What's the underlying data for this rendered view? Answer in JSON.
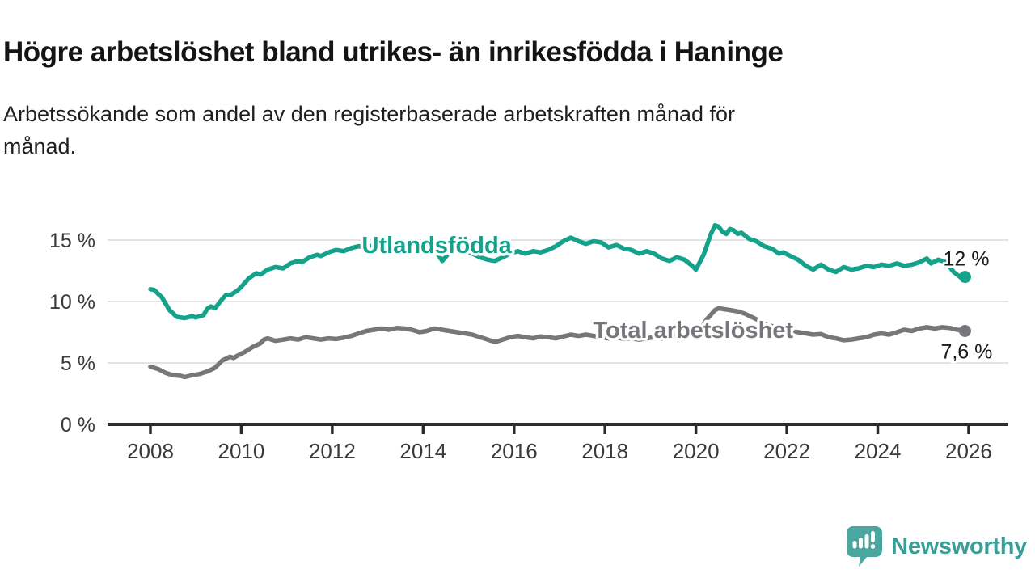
{
  "header": {
    "title": "Högre arbetslöshet bland utrikes- än inrikesfödda i Haninge",
    "subtitle_lines": [
      "Arbetssökande som andel av den registerbaserade arbetskraften månad för",
      "månad."
    ]
  },
  "branding": {
    "wordmark": "Newsworthy",
    "logo_color": "#4aa69f",
    "wordmark_color": "#3b9e96"
  },
  "chart_data": {
    "type": "line",
    "title": "Högre arbetslöshet bland utrikes- än inrikesfödda i Haninge",
    "subtitle": "Arbetssökande som andel av den registerbaserade arbetskraften månad för månad.",
    "xlabel": "",
    "ylabel": "",
    "xlim": [
      2007.05,
      2026.9
    ],
    "ylim": [
      0,
      17.5
    ],
    "grid": "horizontal",
    "grid_color": "#e3e3e3",
    "axis_color": "#2b2b2b",
    "tick_label_color": "#3a3a3a",
    "y_ticks": [
      {
        "value": 0,
        "label": "0 %"
      },
      {
        "value": 5,
        "label": "5 %"
      },
      {
        "value": 10,
        "label": "10 %"
      },
      {
        "value": 15,
        "label": "15 %"
      }
    ],
    "x_ticks": [
      {
        "value": 2008,
        "label": "2008"
      },
      {
        "value": 2010,
        "label": "2010"
      },
      {
        "value": 2012,
        "label": "2012"
      },
      {
        "value": 2014,
        "label": "2014"
      },
      {
        "value": 2016,
        "label": "2016"
      },
      {
        "value": 2018,
        "label": "2018"
      },
      {
        "value": 2020,
        "label": "2020"
      },
      {
        "value": 2022,
        "label": "2022"
      },
      {
        "value": 2024,
        "label": "2024"
      },
      {
        "value": 2026,
        "label": "2026"
      }
    ],
    "series": [
      {
        "name": "Utlandsfödda",
        "color": "#14a28b",
        "end_label": "12 %",
        "end_value": 12.0,
        "label_anchor": {
          "x": 2014.3,
          "y": 14.6
        },
        "points": [
          [
            2008.0,
            11.0
          ],
          [
            2008.08,
            10.95
          ],
          [
            2008.25,
            10.35
          ],
          [
            2008.42,
            9.3
          ],
          [
            2008.58,
            8.75
          ],
          [
            2008.75,
            8.65
          ],
          [
            2008.92,
            8.8
          ],
          [
            2009.0,
            8.7
          ],
          [
            2009.17,
            8.9
          ],
          [
            2009.25,
            9.4
          ],
          [
            2009.33,
            9.6
          ],
          [
            2009.42,
            9.45
          ],
          [
            2009.58,
            10.2
          ],
          [
            2009.67,
            10.55
          ],
          [
            2009.75,
            10.5
          ],
          [
            2009.92,
            10.9
          ],
          [
            2010.0,
            11.2
          ],
          [
            2010.17,
            11.9
          ],
          [
            2010.33,
            12.3
          ],
          [
            2010.42,
            12.2
          ],
          [
            2010.58,
            12.6
          ],
          [
            2010.75,
            12.8
          ],
          [
            2010.92,
            12.7
          ],
          [
            2011.08,
            13.1
          ],
          [
            2011.25,
            13.3
          ],
          [
            2011.33,
            13.2
          ],
          [
            2011.5,
            13.6
          ],
          [
            2011.67,
            13.8
          ],
          [
            2011.75,
            13.7
          ],
          [
            2011.92,
            14.0
          ],
          [
            2012.08,
            14.2
          ],
          [
            2012.25,
            14.1
          ],
          [
            2012.42,
            14.35
          ],
          [
            2012.58,
            14.5
          ],
          [
            2012.75,
            14.4
          ],
          [
            2012.92,
            14.6
          ],
          [
            2013.08,
            14.8
          ],
          [
            2013.25,
            14.7
          ],
          [
            2013.42,
            14.9
          ],
          [
            2013.58,
            14.8
          ],
          [
            2013.75,
            14.85
          ],
          [
            2013.92,
            14.7
          ],
          [
            2014.08,
            14.6
          ],
          [
            2014.25,
            14.3
          ],
          [
            2014.42,
            13.3
          ],
          [
            2014.58,
            14.0
          ],
          [
            2014.75,
            14.2
          ],
          [
            2014.92,
            14.0
          ],
          [
            2015.08,
            13.9
          ],
          [
            2015.25,
            13.6
          ],
          [
            2015.42,
            13.4
          ],
          [
            2015.58,
            13.3
          ],
          [
            2015.75,
            13.6
          ],
          [
            2015.92,
            13.9
          ],
          [
            2016.08,
            14.1
          ],
          [
            2016.25,
            13.9
          ],
          [
            2016.42,
            14.1
          ],
          [
            2016.58,
            14.0
          ],
          [
            2016.75,
            14.2
          ],
          [
            2016.92,
            14.5
          ],
          [
            2017.08,
            14.9
          ],
          [
            2017.25,
            15.2
          ],
          [
            2017.42,
            14.9
          ],
          [
            2017.58,
            14.7
          ],
          [
            2017.75,
            14.9
          ],
          [
            2017.92,
            14.8
          ],
          [
            2018.08,
            14.4
          ],
          [
            2018.25,
            14.6
          ],
          [
            2018.42,
            14.3
          ],
          [
            2018.58,
            14.2
          ],
          [
            2018.75,
            13.9
          ],
          [
            2018.92,
            14.1
          ],
          [
            2019.08,
            13.9
          ],
          [
            2019.25,
            13.5
          ],
          [
            2019.42,
            13.3
          ],
          [
            2019.58,
            13.6
          ],
          [
            2019.75,
            13.4
          ],
          [
            2019.92,
            12.9
          ],
          [
            2020.0,
            12.6
          ],
          [
            2020.17,
            13.8
          ],
          [
            2020.33,
            15.5
          ],
          [
            2020.42,
            16.2
          ],
          [
            2020.5,
            16.1
          ],
          [
            2020.58,
            15.7
          ],
          [
            2020.67,
            15.5
          ],
          [
            2020.75,
            15.9
          ],
          [
            2020.83,
            15.8
          ],
          [
            2020.92,
            15.5
          ],
          [
            2021.0,
            15.6
          ],
          [
            2021.17,
            15.1
          ],
          [
            2021.33,
            14.9
          ],
          [
            2021.5,
            14.5
          ],
          [
            2021.67,
            14.3
          ],
          [
            2021.83,
            13.9
          ],
          [
            2021.92,
            14.0
          ],
          [
            2022.08,
            13.7
          ],
          [
            2022.25,
            13.4
          ],
          [
            2022.42,
            12.9
          ],
          [
            2022.58,
            12.6
          ],
          [
            2022.75,
            13.0
          ],
          [
            2022.92,
            12.6
          ],
          [
            2023.08,
            12.4
          ],
          [
            2023.25,
            12.8
          ],
          [
            2023.42,
            12.6
          ],
          [
            2023.58,
            12.7
          ],
          [
            2023.75,
            12.9
          ],
          [
            2023.92,
            12.8
          ],
          [
            2024.08,
            13.0
          ],
          [
            2024.25,
            12.9
          ],
          [
            2024.42,
            13.1
          ],
          [
            2024.58,
            12.9
          ],
          [
            2024.75,
            13.0
          ],
          [
            2024.92,
            13.2
          ],
          [
            2025.08,
            13.5
          ],
          [
            2025.17,
            13.1
          ],
          [
            2025.33,
            13.4
          ],
          [
            2025.5,
            13.2
          ],
          [
            2025.67,
            12.4
          ],
          [
            2025.83,
            11.95
          ],
          [
            2025.92,
            12.0
          ]
        ]
      },
      {
        "name": "Total arbetslöshet",
        "color": "#77777b",
        "end_label": "7,6 %",
        "end_value": 7.6,
        "label_anchor": {
          "x": 2019.94,
          "y": 7.7
        },
        "points": [
          [
            2008.0,
            4.7
          ],
          [
            2008.17,
            4.5
          ],
          [
            2008.33,
            4.2
          ],
          [
            2008.5,
            4.0
          ],
          [
            2008.67,
            3.95
          ],
          [
            2008.75,
            3.85
          ],
          [
            2008.92,
            4.0
          ],
          [
            2009.08,
            4.1
          ],
          [
            2009.25,
            4.3
          ],
          [
            2009.42,
            4.6
          ],
          [
            2009.58,
            5.2
          ],
          [
            2009.75,
            5.5
          ],
          [
            2009.83,
            5.4
          ],
          [
            2009.92,
            5.6
          ],
          [
            2010.08,
            5.9
          ],
          [
            2010.25,
            6.3
          ],
          [
            2010.42,
            6.6
          ],
          [
            2010.5,
            6.9
          ],
          [
            2010.58,
            7.0
          ],
          [
            2010.75,
            6.8
          ],
          [
            2010.92,
            6.9
          ],
          [
            2011.08,
            7.0
          ],
          [
            2011.25,
            6.9
          ],
          [
            2011.42,
            7.1
          ],
          [
            2011.58,
            7.0
          ],
          [
            2011.75,
            6.9
          ],
          [
            2011.92,
            7.0
          ],
          [
            2012.08,
            6.95
          ],
          [
            2012.25,
            7.05
          ],
          [
            2012.42,
            7.2
          ],
          [
            2012.58,
            7.4
          ],
          [
            2012.75,
            7.6
          ],
          [
            2012.92,
            7.7
          ],
          [
            2013.08,
            7.8
          ],
          [
            2013.25,
            7.7
          ],
          [
            2013.42,
            7.85
          ],
          [
            2013.58,
            7.8
          ],
          [
            2013.75,
            7.7
          ],
          [
            2013.92,
            7.5
          ],
          [
            2014.08,
            7.6
          ],
          [
            2014.25,
            7.8
          ],
          [
            2014.42,
            7.7
          ],
          [
            2014.58,
            7.6
          ],
          [
            2014.75,
            7.5
          ],
          [
            2014.92,
            7.4
          ],
          [
            2015.08,
            7.3
          ],
          [
            2015.25,
            7.1
          ],
          [
            2015.42,
            6.9
          ],
          [
            2015.58,
            6.7
          ],
          [
            2015.75,
            6.9
          ],
          [
            2015.92,
            7.1
          ],
          [
            2016.08,
            7.2
          ],
          [
            2016.25,
            7.1
          ],
          [
            2016.42,
            7.0
          ],
          [
            2016.58,
            7.15
          ],
          [
            2016.75,
            7.1
          ],
          [
            2016.92,
            7.0
          ],
          [
            2017.08,
            7.15
          ],
          [
            2017.25,
            7.3
          ],
          [
            2017.42,
            7.2
          ],
          [
            2017.58,
            7.3
          ],
          [
            2017.75,
            7.2
          ],
          [
            2017.92,
            7.1
          ],
          [
            2018.08,
            7.0
          ],
          [
            2018.25,
            7.1
          ],
          [
            2018.42,
            6.95
          ],
          [
            2018.58,
            7.0
          ],
          [
            2018.75,
            6.9
          ],
          [
            2018.92,
            7.0
          ],
          [
            2019.08,
            7.1
          ],
          [
            2019.25,
            7.0
          ],
          [
            2019.42,
            7.2
          ],
          [
            2019.58,
            7.3
          ],
          [
            2019.75,
            7.25
          ],
          [
            2019.92,
            7.4
          ],
          [
            2020.08,
            7.7
          ],
          [
            2020.25,
            8.6
          ],
          [
            2020.42,
            9.3
          ],
          [
            2020.5,
            9.45
          ],
          [
            2020.58,
            9.4
          ],
          [
            2020.75,
            9.3
          ],
          [
            2020.92,
            9.2
          ],
          [
            2021.08,
            9.0
          ],
          [
            2021.25,
            8.7
          ],
          [
            2021.42,
            8.4
          ],
          [
            2021.58,
            8.1
          ],
          [
            2021.75,
            7.9
          ],
          [
            2021.92,
            7.7
          ],
          [
            2022.08,
            7.6
          ],
          [
            2022.25,
            7.5
          ],
          [
            2022.42,
            7.4
          ],
          [
            2022.58,
            7.3
          ],
          [
            2022.75,
            7.35
          ],
          [
            2022.92,
            7.1
          ],
          [
            2023.08,
            7.0
          ],
          [
            2023.25,
            6.85
          ],
          [
            2023.42,
            6.9
          ],
          [
            2023.58,
            7.0
          ],
          [
            2023.75,
            7.1
          ],
          [
            2023.92,
            7.3
          ],
          [
            2024.08,
            7.4
          ],
          [
            2024.25,
            7.3
          ],
          [
            2024.42,
            7.5
          ],
          [
            2024.58,
            7.7
          ],
          [
            2024.75,
            7.6
          ],
          [
            2024.92,
            7.8
          ],
          [
            2025.08,
            7.9
          ],
          [
            2025.25,
            7.8
          ],
          [
            2025.42,
            7.9
          ],
          [
            2025.58,
            7.85
          ],
          [
            2025.75,
            7.7
          ],
          [
            2025.92,
            7.6
          ]
        ]
      }
    ],
    "legend_position": "inline-labels"
  }
}
